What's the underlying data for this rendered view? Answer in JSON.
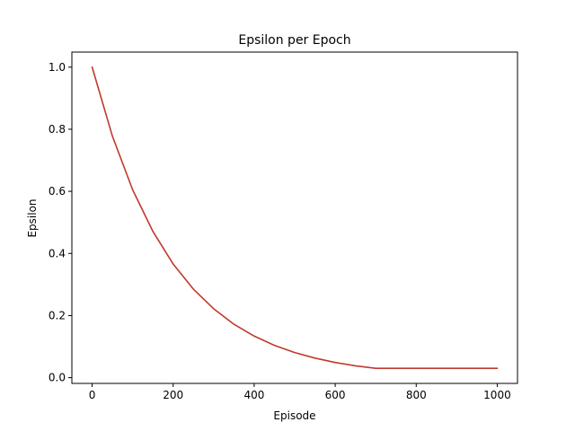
{
  "chart_data": {
    "type": "line",
    "title": "Epsilon per Epoch",
    "xlabel": "Episode",
    "ylabel": "Epsilon",
    "xlim": [
      -50,
      1050
    ],
    "ylim": [
      -0.0185,
      1.0485
    ],
    "x_ticks": [
      "0",
      "200",
      "400",
      "600",
      "800",
      "1000"
    ],
    "y_ticks": [
      "0.0",
      "0.2",
      "0.4",
      "0.6",
      "0.8",
      "1.0"
    ],
    "grid": false,
    "legend": "none",
    "series": [
      {
        "color": "#c0392b",
        "x": [
          0,
          50,
          100,
          150,
          200,
          250,
          300,
          350,
          400,
          450,
          500,
          550,
          600,
          650,
          700,
          750,
          800,
          850,
          900,
          950,
          1000
        ],
        "y": [
          1.0,
          0.778,
          0.605,
          0.471,
          0.366,
          0.285,
          0.222,
          0.172,
          0.134,
          0.104,
          0.081,
          0.063,
          0.049,
          0.038,
          0.03,
          0.03,
          0.03,
          0.03,
          0.03,
          0.03,
          0.03
        ]
      }
    ]
  }
}
